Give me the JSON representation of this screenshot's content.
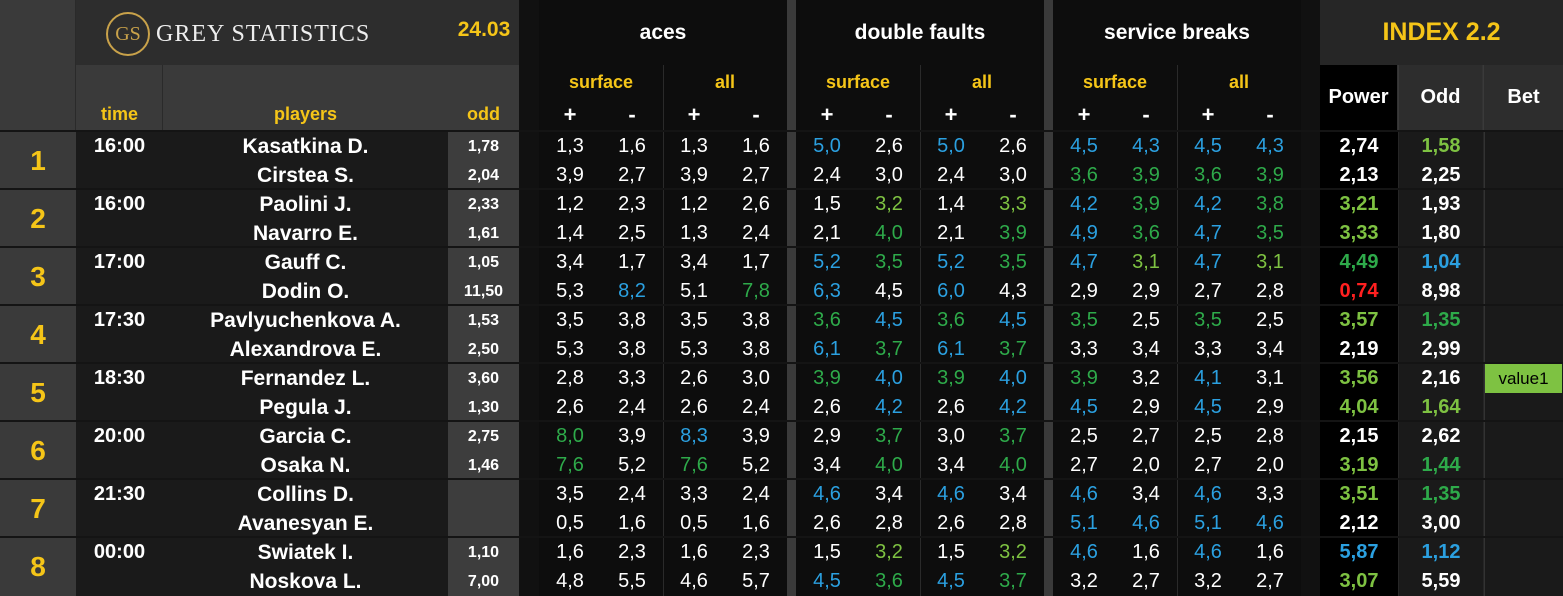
{
  "brand": {
    "logo_text": "GS",
    "name": "GREY STATISTICS",
    "date": "24.03"
  },
  "groups": {
    "aces": "aces",
    "double_faults": "double faults",
    "service_breaks": "service breaks",
    "index": "INDEX 2.2"
  },
  "subheaders": {
    "surface": "surface",
    "all": "all",
    "plus": "+",
    "minus": "-"
  },
  "columns": {
    "time": "time",
    "players": "players",
    "odd": "odd",
    "power": "Power",
    "index_odd": "Odd",
    "bet": "Bet"
  },
  "colors": {
    "white": "#ffffff",
    "green": "#7ec242",
    "dark_green": "#2eaa4a",
    "blue": "#2ba0e0",
    "red": "#ff2020",
    "yellow": "#f5c518"
  },
  "matches": [
    {
      "num": "1",
      "time": "16:00",
      "bet": "",
      "rows": [
        {
          "player": "Kasatkina D.",
          "odd": "1,78",
          "stats": [
            [
              "1,3",
              "w"
            ],
            [
              "1,6",
              "w"
            ],
            [
              "1,3",
              "w"
            ],
            [
              "1,6",
              "w"
            ],
            [
              "5,0",
              "b"
            ],
            [
              "2,6",
              "w"
            ],
            [
              "5,0",
              "b"
            ],
            [
              "2,6",
              "w"
            ],
            [
              "4,5",
              "b"
            ],
            [
              "4,3",
              "b"
            ],
            [
              "4,5",
              "b"
            ],
            [
              "4,3",
              "b"
            ]
          ],
          "power": [
            "2,74",
            "w"
          ],
          "iodd": [
            "1,58",
            "g"
          ]
        },
        {
          "player": "Cirstea S.",
          "odd": "2,04",
          "stats": [
            [
              "3,9",
              "w"
            ],
            [
              "2,7",
              "w"
            ],
            [
              "3,9",
              "w"
            ],
            [
              "2,7",
              "w"
            ],
            [
              "2,4",
              "w"
            ],
            [
              "3,0",
              "w"
            ],
            [
              "2,4",
              "w"
            ],
            [
              "3,0",
              "w"
            ],
            [
              "3,6",
              "dg"
            ],
            [
              "3,9",
              "dg"
            ],
            [
              "3,6",
              "dg"
            ],
            [
              "3,9",
              "dg"
            ]
          ],
          "power": [
            "2,13",
            "w"
          ],
          "iodd": [
            "2,25",
            "w"
          ]
        }
      ]
    },
    {
      "num": "2",
      "time": "16:00",
      "bet": "",
      "rows": [
        {
          "player": "Paolini J.",
          "odd": "2,33",
          "stats": [
            [
              "1,2",
              "w"
            ],
            [
              "2,3",
              "w"
            ],
            [
              "1,2",
              "w"
            ],
            [
              "2,6",
              "w"
            ],
            [
              "1,5",
              "w"
            ],
            [
              "3,2",
              "g"
            ],
            [
              "1,4",
              "w"
            ],
            [
              "3,3",
              "g"
            ],
            [
              "4,2",
              "b"
            ],
            [
              "3,9",
              "dg"
            ],
            [
              "4,2",
              "b"
            ],
            [
              "3,8",
              "dg"
            ]
          ],
          "power": [
            "3,21",
            "g"
          ],
          "iodd": [
            "1,93",
            "w"
          ]
        },
        {
          "player": "Navarro E.",
          "odd": "1,61",
          "stats": [
            [
              "1,4",
              "w"
            ],
            [
              "2,5",
              "w"
            ],
            [
              "1,3",
              "w"
            ],
            [
              "2,4",
              "w"
            ],
            [
              "2,1",
              "w"
            ],
            [
              "4,0",
              "dg"
            ],
            [
              "2,1",
              "w"
            ],
            [
              "3,9",
              "dg"
            ],
            [
              "4,9",
              "b"
            ],
            [
              "3,6",
              "dg"
            ],
            [
              "4,7",
              "b"
            ],
            [
              "3,5",
              "dg"
            ]
          ],
          "power": [
            "3,33",
            "g"
          ],
          "iodd": [
            "1,80",
            "w"
          ]
        }
      ]
    },
    {
      "num": "3",
      "time": "17:00",
      "bet": "",
      "rows": [
        {
          "player": "Gauff C.",
          "odd": "1,05",
          "stats": [
            [
              "3,4",
              "w"
            ],
            [
              "1,7",
              "w"
            ],
            [
              "3,4",
              "w"
            ],
            [
              "1,7",
              "w"
            ],
            [
              "5,2",
              "b"
            ],
            [
              "3,5",
              "dg"
            ],
            [
              "5,2",
              "b"
            ],
            [
              "3,5",
              "dg"
            ],
            [
              "4,7",
              "b"
            ],
            [
              "3,1",
              "g"
            ],
            [
              "4,7",
              "b"
            ],
            [
              "3,1",
              "g"
            ]
          ],
          "power": [
            "4,49",
            "dg"
          ],
          "iodd": [
            "1,04",
            "b"
          ]
        },
        {
          "player": "Dodin O.",
          "odd": "11,50",
          "stats": [
            [
              "5,3",
              "w"
            ],
            [
              "8,2",
              "b"
            ],
            [
              "5,1",
              "w"
            ],
            [
              "7,8",
              "dg"
            ],
            [
              "6,3",
              "b"
            ],
            [
              "4,5",
              "w"
            ],
            [
              "6,0",
              "b"
            ],
            [
              "4,3",
              "w"
            ],
            [
              "2,9",
              "w"
            ],
            [
              "2,9",
              "w"
            ],
            [
              "2,7",
              "w"
            ],
            [
              "2,8",
              "w"
            ]
          ],
          "power": [
            "0,74",
            "r"
          ],
          "iodd": [
            "8,98",
            "w"
          ]
        }
      ]
    },
    {
      "num": "4",
      "time": "17:30",
      "bet": "",
      "rows": [
        {
          "player": "Pavlyuchenkova A.",
          "odd": "1,53",
          "stats": [
            [
              "3,5",
              "w"
            ],
            [
              "3,8",
              "w"
            ],
            [
              "3,5",
              "w"
            ],
            [
              "3,8",
              "w"
            ],
            [
              "3,6",
              "dg"
            ],
            [
              "4,5",
              "b"
            ],
            [
              "3,6",
              "dg"
            ],
            [
              "4,5",
              "b"
            ],
            [
              "3,5",
              "dg"
            ],
            [
              "2,5",
              "w"
            ],
            [
              "3,5",
              "dg"
            ],
            [
              "2,5",
              "w"
            ]
          ],
          "power": [
            "3,57",
            "g"
          ],
          "iodd": [
            "1,35",
            "dg"
          ]
        },
        {
          "player": "Alexandrova E.",
          "odd": "2,50",
          "stats": [
            [
              "5,3",
              "w"
            ],
            [
              "3,8",
              "w"
            ],
            [
              "5,3",
              "w"
            ],
            [
              "3,8",
              "w"
            ],
            [
              "6,1",
              "b"
            ],
            [
              "3,7",
              "dg"
            ],
            [
              "6,1",
              "b"
            ],
            [
              "3,7",
              "dg"
            ],
            [
              "3,3",
              "w"
            ],
            [
              "3,4",
              "w"
            ],
            [
              "3,3",
              "w"
            ],
            [
              "3,4",
              "w"
            ]
          ],
          "power": [
            "2,19",
            "w"
          ],
          "iodd": [
            "2,99",
            "w"
          ]
        }
      ]
    },
    {
      "num": "5",
      "time": "18:30",
      "bet": "value1",
      "rows": [
        {
          "player": "Fernandez L.",
          "odd": "3,60",
          "stats": [
            [
              "2,8",
              "w"
            ],
            [
              "3,3",
              "w"
            ],
            [
              "2,6",
              "w"
            ],
            [
              "3,0",
              "w"
            ],
            [
              "3,9",
              "dg"
            ],
            [
              "4,0",
              "b"
            ],
            [
              "3,9",
              "dg"
            ],
            [
              "4,0",
              "b"
            ],
            [
              "3,9",
              "dg"
            ],
            [
              "3,2",
              "w"
            ],
            [
              "4,1",
              "b"
            ],
            [
              "3,1",
              "w"
            ]
          ],
          "power": [
            "3,56",
            "g"
          ],
          "iodd": [
            "2,16",
            "w"
          ]
        },
        {
          "player": "Pegula J.",
          "odd": "1,30",
          "stats": [
            [
              "2,6",
              "w"
            ],
            [
              "2,4",
              "w"
            ],
            [
              "2,6",
              "w"
            ],
            [
              "2,4",
              "w"
            ],
            [
              "2,6",
              "w"
            ],
            [
              "4,2",
              "b"
            ],
            [
              "2,6",
              "w"
            ],
            [
              "4,2",
              "b"
            ],
            [
              "4,5",
              "b"
            ],
            [
              "2,9",
              "w"
            ],
            [
              "4,5",
              "b"
            ],
            [
              "2,9",
              "w"
            ]
          ],
          "power": [
            "4,04",
            "g"
          ],
          "iodd": [
            "1,64",
            "g"
          ]
        }
      ]
    },
    {
      "num": "6",
      "time": "20:00",
      "bet": "",
      "rows": [
        {
          "player": "Garcia C.",
          "odd": "2,75",
          "stats": [
            [
              "8,0",
              "dg"
            ],
            [
              "3,9",
              "w"
            ],
            [
              "8,3",
              "b"
            ],
            [
              "3,9",
              "w"
            ],
            [
              "2,9",
              "w"
            ],
            [
              "3,7",
              "dg"
            ],
            [
              "3,0",
              "w"
            ],
            [
              "3,7",
              "dg"
            ],
            [
              "2,5",
              "w"
            ],
            [
              "2,7",
              "w"
            ],
            [
              "2,5",
              "w"
            ],
            [
              "2,8",
              "w"
            ]
          ],
          "power": [
            "2,15",
            "w"
          ],
          "iodd": [
            "2,62",
            "w"
          ]
        },
        {
          "player": "Osaka N.",
          "odd": "1,46",
          "stats": [
            [
              "7,6",
              "dg"
            ],
            [
              "5,2",
              "w"
            ],
            [
              "7,6",
              "dg"
            ],
            [
              "5,2",
              "w"
            ],
            [
              "3,4",
              "w"
            ],
            [
              "4,0",
              "dg"
            ],
            [
              "3,4",
              "w"
            ],
            [
              "4,0",
              "dg"
            ],
            [
              "2,7",
              "w"
            ],
            [
              "2,0",
              "w"
            ],
            [
              "2,7",
              "w"
            ],
            [
              "2,0",
              "w"
            ]
          ],
          "power": [
            "3,19",
            "g"
          ],
          "iodd": [
            "1,44",
            "dg"
          ]
        }
      ]
    },
    {
      "num": "7",
      "time": "21:30",
      "bet": "",
      "rows": [
        {
          "player": "Collins D.",
          "odd": "",
          "stats": [
            [
              "3,5",
              "w"
            ],
            [
              "2,4",
              "w"
            ],
            [
              "3,3",
              "w"
            ],
            [
              "2,4",
              "w"
            ],
            [
              "4,6",
              "b"
            ],
            [
              "3,4",
              "w"
            ],
            [
              "4,6",
              "b"
            ],
            [
              "3,4",
              "w"
            ],
            [
              "4,6",
              "b"
            ],
            [
              "3,4",
              "w"
            ],
            [
              "4,6",
              "b"
            ],
            [
              "3,3",
              "w"
            ]
          ],
          "power": [
            "3,51",
            "g"
          ],
          "iodd": [
            "1,35",
            "dg"
          ]
        },
        {
          "player": "Avanesyan E.",
          "odd": "",
          "stats": [
            [
              "0,5",
              "w"
            ],
            [
              "1,6",
              "w"
            ],
            [
              "0,5",
              "w"
            ],
            [
              "1,6",
              "w"
            ],
            [
              "2,6",
              "w"
            ],
            [
              "2,8",
              "w"
            ],
            [
              "2,6",
              "w"
            ],
            [
              "2,8",
              "w"
            ],
            [
              "5,1",
              "b"
            ],
            [
              "4,6",
              "b"
            ],
            [
              "5,1",
              "b"
            ],
            [
              "4,6",
              "b"
            ]
          ],
          "power": [
            "2,12",
            "w"
          ],
          "iodd": [
            "3,00",
            "w"
          ]
        }
      ]
    },
    {
      "num": "8",
      "time": "00:00",
      "bet": "",
      "rows": [
        {
          "player": "Swiatek I.",
          "odd": "1,10",
          "stats": [
            [
              "1,6",
              "w"
            ],
            [
              "2,3",
              "w"
            ],
            [
              "1,6",
              "w"
            ],
            [
              "2,3",
              "w"
            ],
            [
              "1,5",
              "w"
            ],
            [
              "3,2",
              "g"
            ],
            [
              "1,5",
              "w"
            ],
            [
              "3,2",
              "g"
            ],
            [
              "4,6",
              "b"
            ],
            [
              "1,6",
              "w"
            ],
            [
              "4,6",
              "b"
            ],
            [
              "1,6",
              "w"
            ]
          ],
          "power": [
            "5,87",
            "b"
          ],
          "iodd": [
            "1,12",
            "b"
          ]
        },
        {
          "player": "Noskova L.",
          "odd": "7,00",
          "stats": [
            [
              "4,8",
              "w"
            ],
            [
              "5,5",
              "w"
            ],
            [
              "4,6",
              "w"
            ],
            [
              "5,7",
              "w"
            ],
            [
              "4,5",
              "b"
            ],
            [
              "3,6",
              "dg"
            ],
            [
              "4,5",
              "b"
            ],
            [
              "3,7",
              "dg"
            ],
            [
              "3,2",
              "w"
            ],
            [
              "2,7",
              "w"
            ],
            [
              "3,2",
              "w"
            ],
            [
              "2,7",
              "w"
            ]
          ],
          "power": [
            "3,07",
            "g"
          ],
          "iodd": [
            "5,59",
            "w"
          ]
        }
      ]
    }
  ]
}
